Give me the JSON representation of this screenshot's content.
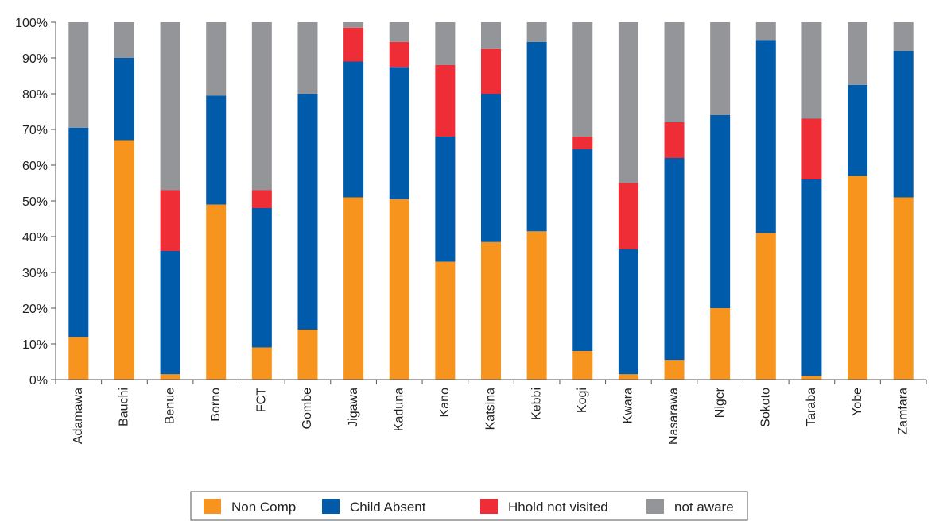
{
  "chart_data": {
    "type": "bar",
    "stacked": true,
    "ylim": [
      0,
      100
    ],
    "y_ticks": [
      "0%",
      "10%",
      "20%",
      "30%",
      "40%",
      "50%",
      "60%",
      "70%",
      "80%",
      "90%",
      "100%"
    ],
    "categories": [
      "Adamawa",
      "Bauchi",
      "Benue",
      "Borno",
      "FCT",
      "Gombe",
      "Jigawa",
      "Kaduna",
      "Kano",
      "Katsina",
      "Kebbi",
      "Kogi",
      "Kwara",
      "Nasarawa",
      "Niger",
      "Sokoto",
      "Taraba",
      "Yobe",
      "Zamfara"
    ],
    "series": [
      {
        "name": "Non Comp",
        "color": "#F7941D",
        "values": [
          12,
          67,
          1.5,
          49,
          9,
          14,
          51,
          50.5,
          33,
          38.5,
          41.5,
          8,
          1.5,
          5.5,
          20,
          41,
          1,
          57,
          51
        ]
      },
      {
        "name": "Child Absent",
        "color": "#005BAA",
        "values": [
          58.5,
          23,
          34.5,
          30.5,
          39,
          66,
          38,
          37,
          35,
          41.5,
          53,
          56.5,
          35,
          56.5,
          54,
          54,
          55,
          25.5,
          41
        ]
      },
      {
        "name": "Hhold not visited",
        "color": "#EE2D36",
        "values": [
          0,
          0,
          17,
          0,
          5,
          0,
          9.5,
          7,
          20,
          12.5,
          0,
          3.5,
          18.5,
          10,
          0,
          0,
          17,
          0,
          0
        ]
      },
      {
        "name": "not aware",
        "color": "#939598",
        "values": [
          29.5,
          10,
          47,
          20.5,
          47,
          20,
          1.5,
          5.5,
          12,
          7.5,
          5.5,
          32,
          45,
          28,
          26,
          5,
          27,
          17.5,
          8
        ]
      }
    ],
    "grid": false,
    "legend_position": "bottom"
  }
}
